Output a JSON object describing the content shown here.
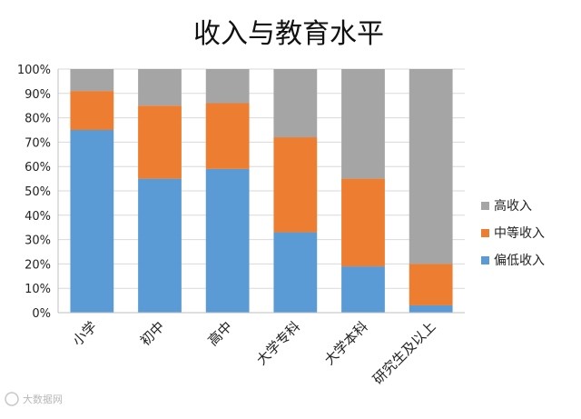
{
  "chart_data": {
    "type": "bar",
    "stacked": true,
    "percent_stacked": true,
    "title": "收入与教育水平",
    "xlabel": "",
    "ylabel": "",
    "categories": [
      "小学",
      "初中",
      "高中",
      "大学专科",
      "大学本科",
      "研究生及以上"
    ],
    "series": [
      {
        "name": "偏低收入",
        "color": "#5b9bd5",
        "values": [
          75,
          55,
          59,
          33,
          19,
          3
        ]
      },
      {
        "name": "中等收入",
        "color": "#ed7d31",
        "values": [
          16,
          30,
          27,
          39,
          36,
          17
        ]
      },
      {
        "name": "高收入",
        "color": "#a5a5a5",
        "values": [
          9,
          15,
          14,
          28,
          45,
          80
        ]
      }
    ],
    "ylim": [
      0,
      100
    ],
    "y_ticks": [
      "0%",
      "10%",
      "20%",
      "30%",
      "40%",
      "50%",
      "60%",
      "70%",
      "80%",
      "90%",
      "100%"
    ],
    "grid": true,
    "legend_position": "right",
    "legend_order": [
      "高收入",
      "中等收入",
      "偏低收入"
    ]
  },
  "watermark": {
    "text": "大数据网"
  }
}
